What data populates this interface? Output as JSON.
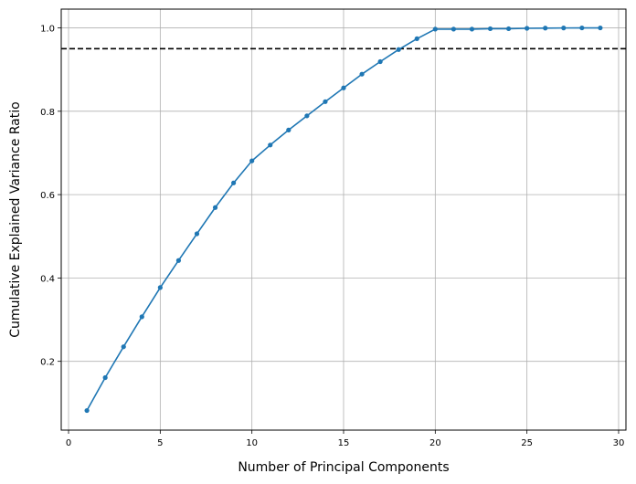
{
  "chart_data": {
    "type": "line",
    "xlabel": "Number of Principal Components",
    "ylabel": "Cumulative Explained Variance Ratio",
    "xlim": [
      -0.4,
      30.4
    ],
    "ylim": [
      0.035,
      1.045
    ],
    "xticks": [
      0,
      5,
      10,
      15,
      20,
      25,
      30
    ],
    "yticks": [
      0.2,
      0.4,
      0.6,
      0.8,
      1.0
    ],
    "grid": true,
    "series": [
      {
        "color": "#1f77b4",
        "marker": "circle",
        "x": [
          1,
          2,
          3,
          4,
          5,
          6,
          7,
          8,
          9,
          10,
          11,
          12,
          13,
          14,
          15,
          16,
          17,
          18,
          19,
          20,
          21,
          22,
          23,
          24,
          25,
          26,
          27,
          28,
          29
        ],
        "y": [
          0.082,
          0.161,
          0.235,
          0.307,
          0.377,
          0.442,
          0.506,
          0.569,
          0.628,
          0.681,
          0.719,
          0.755,
          0.789,
          0.823,
          0.856,
          0.889,
          0.919,
          0.948,
          0.974,
          0.997,
          0.997,
          0.997,
          0.998,
          0.998,
          0.999,
          0.9995,
          0.9998,
          0.9999,
          1.0
        ]
      }
    ],
    "reference_lines": [
      {
        "orientation": "horizontal",
        "y": 0.95,
        "style": "dashed",
        "color": "#000000"
      }
    ]
  }
}
